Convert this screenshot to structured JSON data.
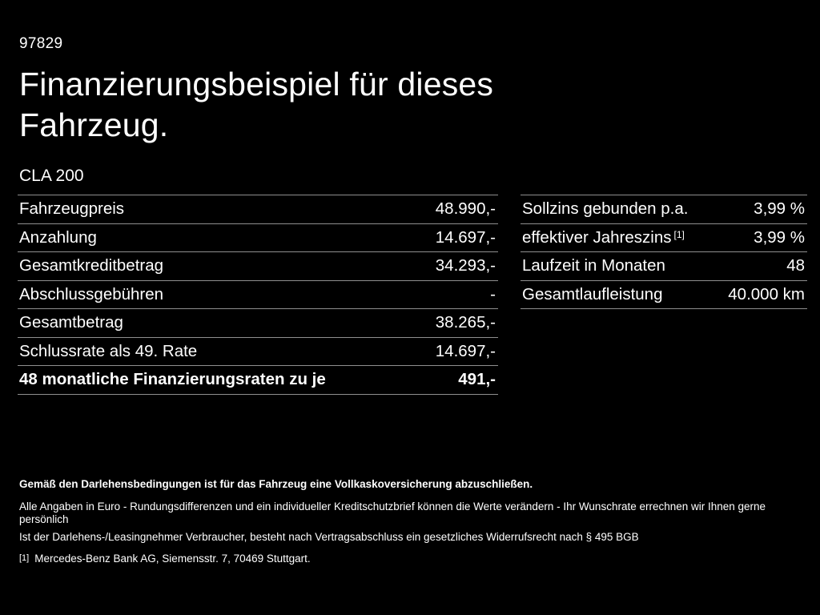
{
  "colors": {
    "background": "#000000",
    "text": "#ffffff",
    "divider": "#8f8f8f"
  },
  "header": {
    "doc_number": "97829",
    "title": "Finanzierungsbeispiel für dieses Fahrzeug.",
    "model": "CLA 200"
  },
  "financing_table": {
    "rows": [
      {
        "label": "Fahrzeugpreis",
        "value": "48.990,-"
      },
      {
        "label": "Anzahlung",
        "value": "14.697,-"
      },
      {
        "label": "Gesamtkreditbetrag",
        "value": "34.293,-"
      },
      {
        "label": "Abschlussgebühren",
        "value": "-"
      },
      {
        "label": "Gesamtbetrag",
        "value": "38.265,-"
      },
      {
        "label": "Schlussrate als 49. Rate",
        "value": "14.697,-"
      },
      {
        "label": "48 monatliche Finanzierungsraten zu je",
        "value": "491,-"
      }
    ]
  },
  "conditions_table": {
    "rows": [
      {
        "label": "Sollzins gebunden p.a.",
        "value": "3,99 %"
      },
      {
        "label": "effektiver Jahreszins",
        "sup": "[1]",
        "value": "3,99 %"
      },
      {
        "label": "Laufzeit in Monaten",
        "value": "48"
      },
      {
        "label": "Gesamtlaufleistung",
        "value": "40.000 km"
      }
    ]
  },
  "footer": {
    "insurance_note": "Gemäß den Darlehensbedingungen ist für das Fahrzeug eine Vollkaskoversicherung abzuschließen.",
    "disclaimer_1": "Alle Angaben in Euro - Rundungsdifferenzen und ein individueller Kreditschutzbrief können die Werte verändern - Ihr Wunschrate errechnen wir Ihnen gerne persönlich",
    "disclaimer_2": "Ist der Darlehens-/Leasingnehmer Verbraucher, besteht nach Vertragsabschluss ein gesetzliches Widerrufsrecht nach § 495 BGB",
    "footnote_marker": "[1]",
    "footnote_text": "Mercedes-Benz Bank AG, Siemensstr. 7, 70469 Stuttgart."
  }
}
